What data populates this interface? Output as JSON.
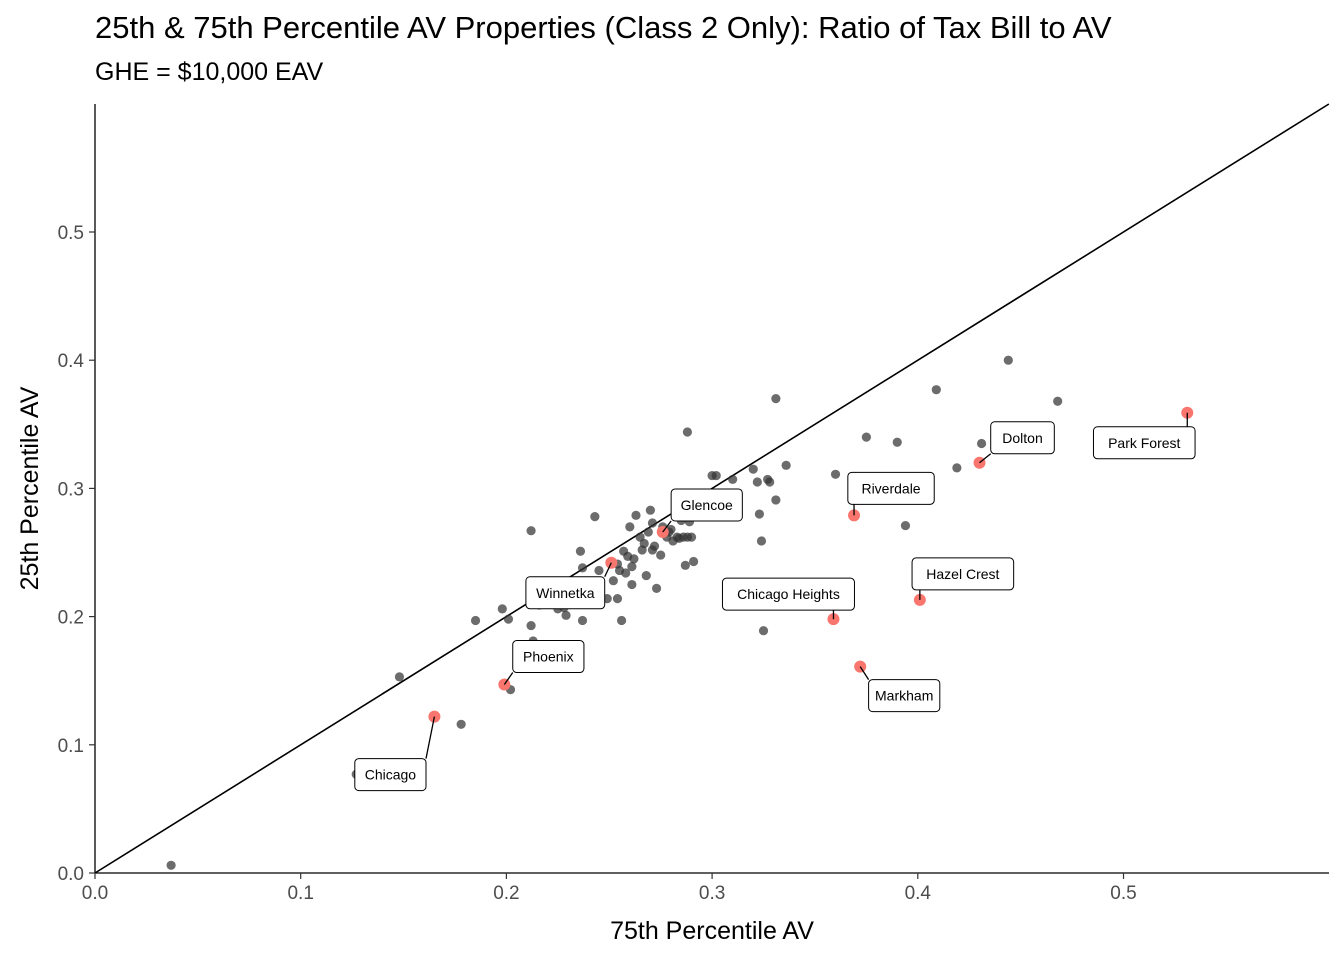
{
  "chart_data": {
    "type": "scatter",
    "title": "25th & 75th Percentile AV Properties (Class 2 Only): Ratio of Tax Bill to AV",
    "subtitle": "GHE = $10,000 EAV",
    "xlabel": "75th Percentile AV",
    "ylabel": "25th Percentile AV",
    "xlim": [
      0,
      0.6
    ],
    "ylim": [
      0,
      0.6
    ],
    "x_ticks": [
      "0.0",
      "0.1",
      "0.2",
      "0.3",
      "0.4",
      "0.5"
    ],
    "y_ticks": [
      "0.0",
      "0.1",
      "0.2",
      "0.3",
      "0.4",
      "0.5"
    ],
    "reference_line": "y = x",
    "grid": false,
    "colors": {
      "points": "#333333",
      "highlight": "#f8766d",
      "line": "#000000"
    },
    "series": [
      {
        "points": [
          [
            0.037,
            0.006
          ],
          [
            0.127,
            0.077
          ],
          [
            0.148,
            0.153
          ],
          [
            0.178,
            0.116
          ],
          [
            0.185,
            0.197
          ],
          [
            0.198,
            0.206
          ],
          [
            0.201,
            0.198
          ],
          [
            0.202,
            0.143
          ],
          [
            0.212,
            0.267
          ],
          [
            0.212,
            0.193
          ],
          [
            0.213,
            0.181
          ],
          [
            0.216,
            0.209
          ],
          [
            0.221,
            0.212
          ],
          [
            0.225,
            0.206
          ],
          [
            0.228,
            0.207
          ],
          [
            0.229,
            0.201
          ],
          [
            0.236,
            0.251
          ],
          [
            0.237,
            0.238
          ],
          [
            0.237,
            0.197
          ],
          [
            0.243,
            0.278
          ],
          [
            0.245,
            0.236
          ],
          [
            0.249,
            0.214
          ],
          [
            0.252,
            0.228
          ],
          [
            0.254,
            0.214
          ],
          [
            0.254,
            0.241
          ],
          [
            0.255,
            0.236
          ],
          [
            0.256,
            0.197
          ],
          [
            0.257,
            0.251
          ],
          [
            0.258,
            0.234
          ],
          [
            0.259,
            0.247
          ],
          [
            0.26,
            0.27
          ],
          [
            0.261,
            0.239
          ],
          [
            0.261,
            0.225
          ],
          [
            0.262,
            0.245
          ],
          [
            0.263,
            0.279
          ],
          [
            0.265,
            0.262
          ],
          [
            0.266,
            0.252
          ],
          [
            0.267,
            0.257
          ],
          [
            0.268,
            0.232
          ],
          [
            0.269,
            0.266
          ],
          [
            0.27,
            0.283
          ],
          [
            0.271,
            0.273
          ],
          [
            0.271,
            0.252
          ],
          [
            0.272,
            0.255
          ],
          [
            0.273,
            0.222
          ],
          [
            0.275,
            0.248
          ],
          [
            0.276,
            0.27
          ],
          [
            0.278,
            0.262
          ],
          [
            0.279,
            0.266
          ],
          [
            0.28,
            0.268
          ],
          [
            0.281,
            0.259
          ],
          [
            0.283,
            0.262
          ],
          [
            0.284,
            0.261
          ],
          [
            0.285,
            0.275
          ],
          [
            0.286,
            0.262
          ],
          [
            0.287,
            0.24
          ],
          [
            0.288,
            0.262
          ],
          [
            0.288,
            0.344
          ],
          [
            0.289,
            0.274
          ],
          [
            0.29,
            0.262
          ],
          [
            0.291,
            0.243
          ],
          [
            0.292,
            0.279
          ],
          [
            0.3,
            0.31
          ],
          [
            0.302,
            0.31
          ],
          [
            0.304,
            0.278
          ],
          [
            0.31,
            0.29
          ],
          [
            0.31,
            0.307
          ],
          [
            0.32,
            0.315
          ],
          [
            0.322,
            0.305
          ],
          [
            0.323,
            0.28
          ],
          [
            0.324,
            0.259
          ],
          [
            0.325,
            0.189
          ],
          [
            0.327,
            0.307
          ],
          [
            0.328,
            0.305
          ],
          [
            0.331,
            0.291
          ],
          [
            0.331,
            0.37
          ],
          [
            0.336,
            0.318
          ],
          [
            0.36,
            0.311
          ],
          [
            0.375,
            0.34
          ],
          [
            0.39,
            0.336
          ],
          [
            0.394,
            0.271
          ],
          [
            0.409,
            0.377
          ],
          [
            0.419,
            0.316
          ],
          [
            0.431,
            0.335
          ],
          [
            0.444,
            0.4
          ],
          [
            0.468,
            0.368
          ]
        ]
      },
      {
        "points": [
          {
            "x": 0.165,
            "y": 0.122,
            "label": "Chicago"
          },
          {
            "x": 0.199,
            "y": 0.147,
            "label": "Phoenix"
          },
          {
            "x": 0.251,
            "y": 0.242,
            "label": "Winnetka"
          },
          {
            "x": 0.276,
            "y": 0.266,
            "label": "Glencoe"
          },
          {
            "x": 0.359,
            "y": 0.198,
            "label": "Chicago Heights"
          },
          {
            "x": 0.369,
            "y": 0.279,
            "label": "Riverdale"
          },
          {
            "x": 0.372,
            "y": 0.161,
            "label": "Markham"
          },
          {
            "x": 0.401,
            "y": 0.213,
            "label": "Hazel Crest"
          },
          {
            "x": 0.43,
            "y": 0.32,
            "label": "Dolton"
          },
          {
            "x": 0.531,
            "y": 0.359,
            "label": "Park Forest"
          }
        ]
      }
    ]
  }
}
